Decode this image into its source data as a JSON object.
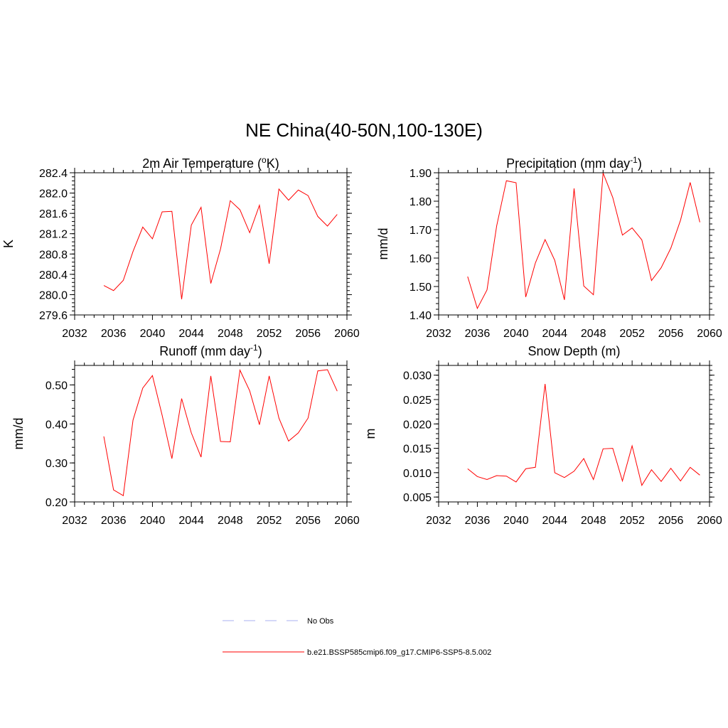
{
  "title": "NE China(40-50N,100-130E)",
  "legend": [
    {
      "label": "No Obs",
      "color": "#aab0f0",
      "dash": true
    },
    {
      "label": "b.e21.BSSP585cmip6.f09_g17.CMIP6-SSP5-8.5.002",
      "color": "#ff0000",
      "dash": false
    }
  ],
  "chart_data": [
    {
      "type": "line",
      "title": "2m Air Temperature (",
      "title_sup": "o",
      "title_end": "K)",
      "ylabel": "K",
      "xlim": [
        2032,
        2060
      ],
      "ylim": [
        279.6,
        282.4
      ],
      "xticks": [
        2032,
        2036,
        2040,
        2044,
        2048,
        2052,
        2056,
        2060
      ],
      "yticks": [
        "279.6",
        "280.0",
        "280.4",
        "280.8",
        "281.2",
        "281.6",
        "282.0",
        "282.4"
      ],
      "color": "#ff0000",
      "x": [
        2035,
        2036,
        2037,
        2038,
        2039,
        2040,
        2041,
        2042,
        2043,
        2044,
        2045,
        2046,
        2047,
        2048,
        2049,
        2050,
        2051,
        2052,
        2053,
        2054,
        2055,
        2056,
        2057,
        2058,
        2059
      ],
      "y": [
        280.18,
        280.08,
        280.28,
        280.85,
        281.33,
        281.1,
        281.63,
        281.64,
        279.91,
        281.37,
        281.72,
        280.22,
        280.9,
        281.85,
        281.67,
        281.22,
        281.76,
        280.61,
        282.08,
        281.86,
        282.06,
        281.95,
        281.54,
        281.35,
        281.58
      ]
    },
    {
      "type": "line",
      "title": "Precipitation (mm day",
      "title_sup": "-1",
      "title_end": ")",
      "ylabel": "mm/d",
      "xlim": [
        2032,
        2060
      ],
      "ylim": [
        1.4,
        1.9
      ],
      "xticks": [
        2032,
        2036,
        2040,
        2044,
        2048,
        2052,
        2056,
        2060
      ],
      "yticks": [
        "1.40",
        "1.50",
        "1.60",
        "1.70",
        "1.80",
        "1.90"
      ],
      "color": "#ff0000",
      "x": [
        2035,
        2036,
        2037,
        2038,
        2039,
        2040,
        2041,
        2042,
        2043,
        2044,
        2045,
        2046,
        2047,
        2048,
        2049,
        2050,
        2051,
        2052,
        2053,
        2054,
        2055,
        2056,
        2057,
        2058,
        2059
      ],
      "y": [
        1.535,
        1.423,
        1.488,
        1.713,
        1.872,
        1.865,
        1.463,
        1.583,
        1.665,
        1.592,
        1.453,
        1.845,
        1.502,
        1.471,
        1.899,
        1.813,
        1.681,
        1.706,
        1.664,
        1.521,
        1.566,
        1.635,
        1.733,
        1.866,
        1.726
      ]
    },
    {
      "type": "line",
      "title": "Runoff (mm day",
      "title_sup": "-1",
      "title_end": ")",
      "ylabel": "mm/d",
      "xlim": [
        2032,
        2060
      ],
      "ylim": [
        0.2,
        0.55
      ],
      "xticks": [
        2032,
        2036,
        2040,
        2044,
        2048,
        2052,
        2056,
        2060
      ],
      "yticks": [
        "0.20",
        "0.30",
        "0.40",
        "0.50"
      ],
      "color": "#ff0000",
      "x": [
        2035,
        2036,
        2037,
        2038,
        2039,
        2040,
        2041,
        2042,
        2043,
        2044,
        2045,
        2046,
        2047,
        2048,
        2049,
        2050,
        2051,
        2052,
        2053,
        2054,
        2055,
        2056,
        2057,
        2058,
        2059
      ],
      "y": [
        0.368,
        0.231,
        0.216,
        0.41,
        0.492,
        0.524,
        0.422,
        0.311,
        0.465,
        0.377,
        0.315,
        0.523,
        0.355,
        0.354,
        0.538,
        0.485,
        0.398,
        0.523,
        0.415,
        0.356,
        0.377,
        0.415,
        0.536,
        0.539,
        0.484
      ]
    },
    {
      "type": "line",
      "title": "Snow Depth (m)",
      "title_sup": "",
      "title_end": "",
      "ylabel": "m",
      "xlim": [
        2032,
        2060
      ],
      "ylim": [
        0.004,
        0.032
      ],
      "xticks": [
        2032,
        2036,
        2040,
        2044,
        2048,
        2052,
        2056,
        2060
      ],
      "yticks": [
        "0.005",
        "0.010",
        "0.015",
        "0.020",
        "0.025",
        "0.030"
      ],
      "color": "#ff0000",
      "x": [
        2035,
        2036,
        2037,
        2038,
        2039,
        2040,
        2041,
        2042,
        2043,
        2044,
        2045,
        2046,
        2047,
        2048,
        2049,
        2050,
        2051,
        2052,
        2053,
        2054,
        2055,
        2056,
        2057,
        2058,
        2059
      ],
      "y": [
        0.0108,
        0.0092,
        0.0086,
        0.0094,
        0.0093,
        0.0081,
        0.0108,
        0.0111,
        0.0282,
        0.01,
        0.009,
        0.0103,
        0.0129,
        0.0086,
        0.0149,
        0.015,
        0.0083,
        0.0155,
        0.0074,
        0.0106,
        0.0082,
        0.0109,
        0.0083,
        0.0111,
        0.0095
      ]
    }
  ]
}
